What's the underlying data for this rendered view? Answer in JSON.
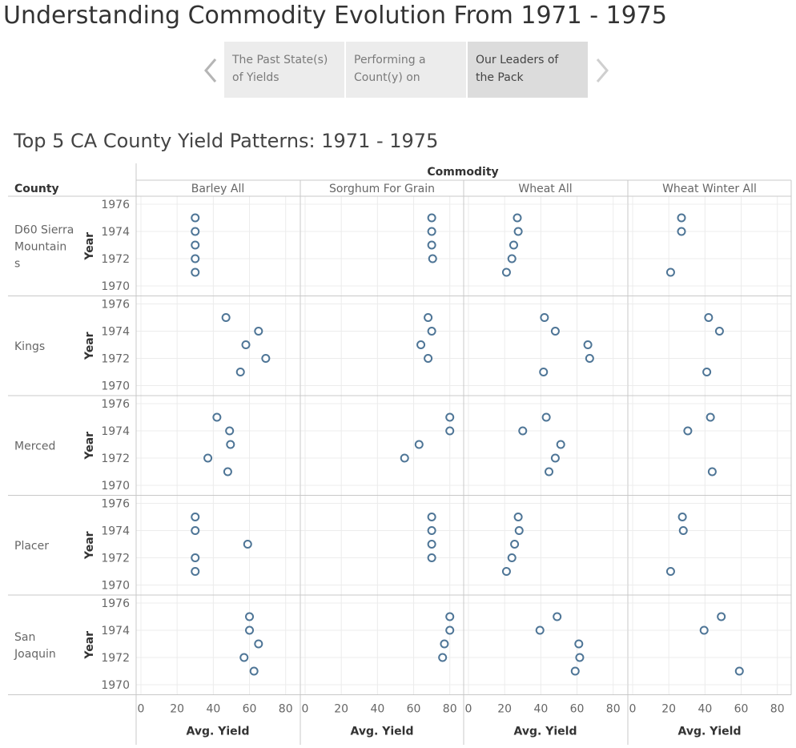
{
  "story": {
    "title": "Understanding Commodity Evolution From 1971 - 1975",
    "points": [
      {
        "label": "The Past State(s) of Yields"
      },
      {
        "label": "Performing a Count(y) on"
      },
      {
        "label": "Our Leaders of the Pack"
      }
    ],
    "active_point": 2
  },
  "icons": {
    "prev": "chevron-left-icon",
    "next": "chevron-right-icon"
  },
  "colors": {
    "mark": "#4e7596",
    "grid": "#ececec",
    "divider": "#c8c8c8"
  },
  "chart_data": {
    "type": "scatter",
    "title": "Top 5 CA County Yield Patterns: 1971 - 1975",
    "column_header": "Commodity",
    "row_header": "County",
    "row_axis_label": "Year",
    "xlabel": "Avg. Yield",
    "xlim": [
      0,
      85
    ],
    "x_ticks": [
      0,
      20,
      40,
      60,
      80
    ],
    "ylim": [
      1969.6,
      1976.4
    ],
    "y_ticks": [
      1970,
      1972,
      1974,
      1976
    ],
    "commodities": [
      "Barley All",
      "Sorghum For Grain",
      "Wheat All",
      "Wheat Winter All"
    ],
    "counties": [
      {
        "name": "D60 Sierra Mountains",
        "label_lines": [
          "D60 Sierra",
          "Mountain",
          "s"
        ],
        "series": [
          {
            "commodity": "Barley All",
            "points": [
              {
                "year": 1975,
                "yield": 30
              },
              {
                "year": 1974,
                "yield": 30
              },
              {
                "year": 1973,
                "yield": 30
              },
              {
                "year": 1972,
                "yield": 30
              },
              {
                "year": 1971,
                "yield": 30
              }
            ]
          },
          {
            "commodity": "Sorghum For Grain",
            "points": [
              {
                "year": 1975,
                "yield": 70
              },
              {
                "year": 1974,
                "yield": 70
              },
              {
                "year": 1973,
                "yield": 70
              },
              {
                "year": 1972,
                "yield": 70.5
              }
            ]
          },
          {
            "commodity": "Wheat All",
            "points": [
              {
                "year": 1975,
                "yield": 27
              },
              {
                "year": 1974,
                "yield": 27.5
              },
              {
                "year": 1973,
                "yield": 25
              },
              {
                "year": 1972,
                "yield": 24
              },
              {
                "year": 1971,
                "yield": 21
              }
            ]
          },
          {
            "commodity": "Wheat Winter All",
            "points": [
              {
                "year": 1975,
                "yield": 27
              },
              {
                "year": 1974,
                "yield": 27
              },
              {
                "year": 1971,
                "yield": 21
              }
            ]
          }
        ]
      },
      {
        "name": "Kings",
        "label_lines": [
          "Kings"
        ],
        "series": [
          {
            "commodity": "Barley All",
            "points": [
              {
                "year": 1975,
                "yield": 47
              },
              {
                "year": 1974,
                "yield": 65
              },
              {
                "year": 1973,
                "yield": 58
              },
              {
                "year": 1972,
                "yield": 69
              },
              {
                "year": 1971,
                "yield": 55
              }
            ]
          },
          {
            "commodity": "Sorghum For Grain",
            "points": [
              {
                "year": 1975,
                "yield": 68
              },
              {
                "year": 1974,
                "yield": 70
              },
              {
                "year": 1973,
                "yield": 64
              },
              {
                "year": 1972,
                "yield": 68
              }
            ]
          },
          {
            "commodity": "Wheat All",
            "points": [
              {
                "year": 1975,
                "yield": 42
              },
              {
                "year": 1974,
                "yield": 48
              },
              {
                "year": 1973,
                "yield": 66
              },
              {
                "year": 1972,
                "yield": 67
              },
              {
                "year": 1971,
                "yield": 41.5
              }
            ]
          },
          {
            "commodity": "Wheat Winter All",
            "points": [
              {
                "year": 1975,
                "yield": 42
              },
              {
                "year": 1974,
                "yield": 48
              },
              {
                "year": 1971,
                "yield": 41
              }
            ]
          }
        ]
      },
      {
        "name": "Merced",
        "label_lines": [
          "Merced"
        ],
        "series": [
          {
            "commodity": "Barley All",
            "points": [
              {
                "year": 1975,
                "yield": 42
              },
              {
                "year": 1974,
                "yield": 49
              },
              {
                "year": 1973,
                "yield": 49.5
              },
              {
                "year": 1972,
                "yield": 37
              },
              {
                "year": 1971,
                "yield": 48
              }
            ]
          },
          {
            "commodity": "Sorghum For Grain",
            "points": [
              {
                "year": 1975,
                "yield": 80
              },
              {
                "year": 1974,
                "yield": 80
              },
              {
                "year": 1973,
                "yield": 63
              },
              {
                "year": 1972,
                "yield": 55
              }
            ]
          },
          {
            "commodity": "Wheat All",
            "points": [
              {
                "year": 1975,
                "yield": 43
              },
              {
                "year": 1974,
                "yield": 30
              },
              {
                "year": 1973,
                "yield": 51
              },
              {
                "year": 1972,
                "yield": 48
              },
              {
                "year": 1971,
                "yield": 44.5
              }
            ]
          },
          {
            "commodity": "Wheat Winter All",
            "points": [
              {
                "year": 1975,
                "yield": 43
              },
              {
                "year": 1974,
                "yield": 30.5
              },
              {
                "year": 1971,
                "yield": 44
              }
            ]
          }
        ]
      },
      {
        "name": "Placer",
        "label_lines": [
          "Placer"
        ],
        "series": [
          {
            "commodity": "Barley All",
            "points": [
              {
                "year": 1975,
                "yield": 30
              },
              {
                "year": 1974,
                "yield": 30
              },
              {
                "year": 1973,
                "yield": 59
              },
              {
                "year": 1972,
                "yield": 30
              },
              {
                "year": 1971,
                "yield": 30
              }
            ]
          },
          {
            "commodity": "Sorghum For Grain",
            "points": [
              {
                "year": 1975,
                "yield": 70
              },
              {
                "year": 1974,
                "yield": 70
              },
              {
                "year": 1973,
                "yield": 70
              },
              {
                "year": 1972,
                "yield": 70
              }
            ]
          },
          {
            "commodity": "Wheat All",
            "points": [
              {
                "year": 1975,
                "yield": 27.5
              },
              {
                "year": 1974,
                "yield": 28
              },
              {
                "year": 1973,
                "yield": 25.5
              },
              {
                "year": 1972,
                "yield": 24
              },
              {
                "year": 1971,
                "yield": 21
              }
            ]
          },
          {
            "commodity": "Wheat Winter All",
            "points": [
              {
                "year": 1975,
                "yield": 27.5
              },
              {
                "year": 1974,
                "yield": 28
              },
              {
                "year": 1971,
                "yield": 21
              }
            ]
          }
        ]
      },
      {
        "name": "San Joaquin",
        "label_lines": [
          "San",
          "Joaquin"
        ],
        "series": [
          {
            "commodity": "Barley All",
            "points": [
              {
                "year": 1975,
                "yield": 60
              },
              {
                "year": 1974,
                "yield": 60
              },
              {
                "year": 1973,
                "yield": 65
              },
              {
                "year": 1972,
                "yield": 57
              },
              {
                "year": 1971,
                "yield": 62.5
              }
            ]
          },
          {
            "commodity": "Sorghum For Grain",
            "points": [
              {
                "year": 1975,
                "yield": 80
              },
              {
                "year": 1974,
                "yield": 80
              },
              {
                "year": 1973,
                "yield": 77
              },
              {
                "year": 1972,
                "yield": 76
              }
            ]
          },
          {
            "commodity": "Wheat All",
            "points": [
              {
                "year": 1975,
                "yield": 49
              },
              {
                "year": 1974,
                "yield": 39.5
              },
              {
                "year": 1973,
                "yield": 61
              },
              {
                "year": 1972,
                "yield": 61.5
              },
              {
                "year": 1971,
                "yield": 59
              }
            ]
          },
          {
            "commodity": "Wheat Winter All",
            "points": [
              {
                "year": 1975,
                "yield": 49
              },
              {
                "year": 1974,
                "yield": 39.5
              },
              {
                "year": 1971,
                "yield": 59
              }
            ]
          }
        ]
      }
    ]
  }
}
